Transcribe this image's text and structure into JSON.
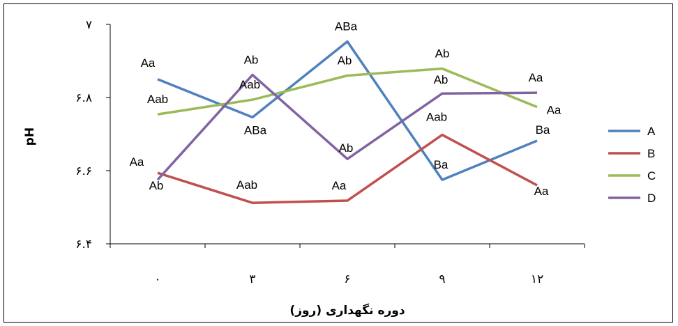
{
  "chart_data": {
    "type": "line",
    "categories": [
      "۰",
      "۳",
      "۶",
      "۹",
      "۱۲"
    ],
    "ylabel": "pH",
    "xlabel": "دوره نگهداری (روز)",
    "ylim": [
      6.4,
      7.0
    ],
    "yticks": [
      {
        "value": 6.4,
        "label": "۶.۴"
      },
      {
        "value": 6.6,
        "label": "۶.۶"
      },
      {
        "value": 6.8,
        "label": "۶.۸"
      },
      {
        "value": 7.0,
        "label": "۷"
      }
    ],
    "legend_position": "right",
    "grid": false,
    "series": [
      {
        "name": "A",
        "color": "#4F81BD",
        "values": [
          6.85,
          6.746,
          6.953,
          6.575,
          6.682
        ],
        "labels": [
          "Aa",
          "ABa",
          "ABa",
          "Ba",
          "Ba"
        ]
      },
      {
        "name": "B",
        "color": "#C0504D",
        "values": [
          6.594,
          6.512,
          6.518,
          6.698,
          6.56
        ],
        "labels": [
          "Aa",
          "Aab",
          "Aa",
          "Aab",
          "Aa"
        ]
      },
      {
        "name": "C",
        "color": "#9BBB59",
        "values": [
          6.754,
          6.794,
          6.86,
          6.879,
          6.774
        ],
        "labels": [
          "Aab",
          "Aab",
          "Ab",
          "Ab",
          "Aa"
        ]
      },
      {
        "name": "D",
        "color": "#8064A2",
        "values": [
          6.575,
          6.862,
          6.632,
          6.811,
          6.813
        ],
        "labels": [
          "Ab",
          "Ab",
          "Ab",
          "Ab",
          "Aa"
        ]
      }
    ]
  }
}
